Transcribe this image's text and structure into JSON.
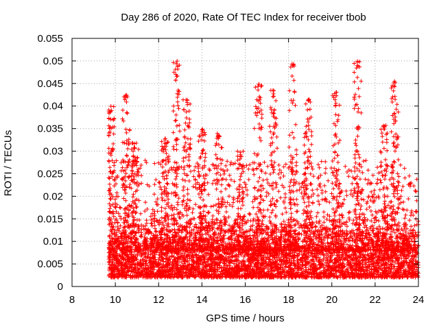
{
  "chart_data": {
    "type": "scatter",
    "title": "Day 286 of 2020, Rate Of TEC Index for receiver tbob",
    "xlabel": "GPS time / hours",
    "ylabel": "ROTI / TECUs",
    "xlim": [
      8,
      24
    ],
    "ylim": [
      0,
      0.055
    ],
    "xticks": [
      "8",
      "10",
      "12",
      "14",
      "16",
      "18",
      "20",
      "22",
      "24"
    ],
    "yticks": [
      "0",
      "0.005",
      "0.01",
      "0.015",
      "0.02",
      "0.025",
      "0.03",
      "0.035",
      "0.04",
      "0.045",
      "0.05",
      "0.055"
    ],
    "grid": true,
    "marker": "+",
    "color": "#ff0000",
    "data_x_range": [
      9.7,
      24.0
    ],
    "series": [
      {
        "name": "ROTI",
        "peaks": [
          {
            "x": 9.8,
            "y": 0.04
          },
          {
            "x": 10.5,
            "y": 0.0425
          },
          {
            "x": 10.9,
            "y": 0.032
          },
          {
            "x": 12.3,
            "y": 0.033
          },
          {
            "x": 12.85,
            "y": 0.05
          },
          {
            "x": 13.3,
            "y": 0.0415
          },
          {
            "x": 14.0,
            "y": 0.035
          },
          {
            "x": 14.8,
            "y": 0.034
          },
          {
            "x": 15.8,
            "y": 0.03
          },
          {
            "x": 16.6,
            "y": 0.045
          },
          {
            "x": 17.3,
            "y": 0.0435
          },
          {
            "x": 18.2,
            "y": 0.0495
          },
          {
            "x": 18.9,
            "y": 0.042
          },
          {
            "x": 20.2,
            "y": 0.0435
          },
          {
            "x": 21.2,
            "y": 0.05
          },
          {
            "x": 22.4,
            "y": 0.036
          },
          {
            "x": 22.9,
            "y": 0.0455
          }
        ],
        "base_range": [
          0.002,
          0.012
        ]
      }
    ]
  }
}
